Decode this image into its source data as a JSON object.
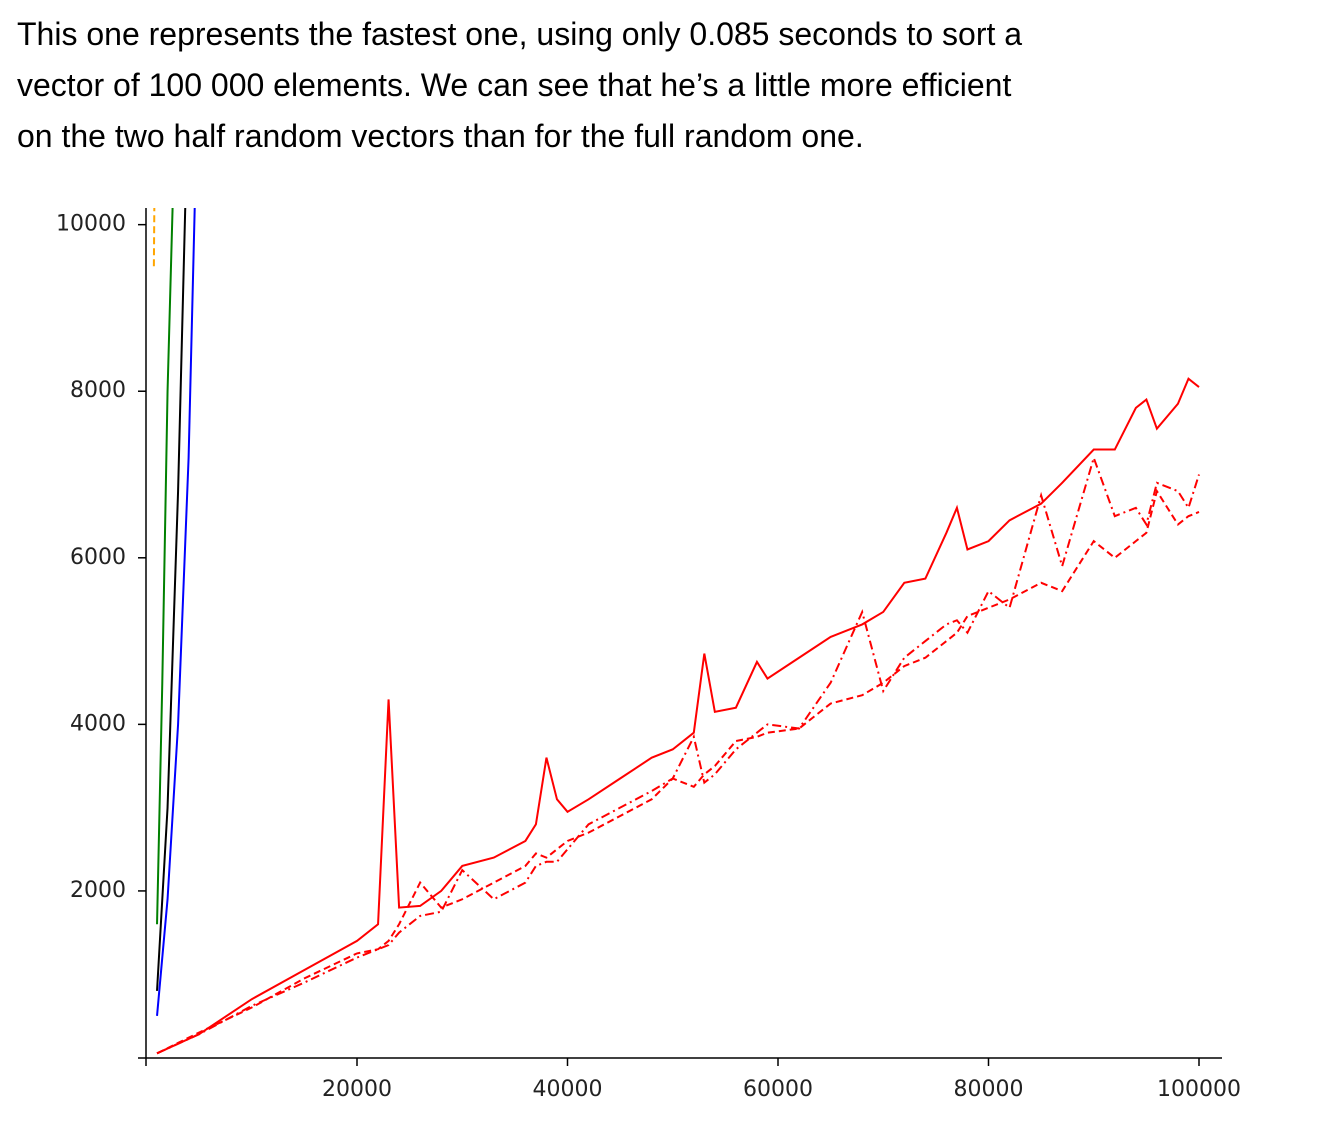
{
  "text": {
    "lines": [
      "This one represents the fastest one, using only 0.085 seconds to sort a",
      "vector of 100 000 elements. We can see that he’s a little more efficient",
      "on the two half random vectors than for the full random one."
    ]
  },
  "chart_data": {
    "type": "line",
    "x": [
      1000,
      5000,
      10000,
      15000,
      20000,
      22000,
      23000,
      24000,
      26000,
      28000,
      30000,
      33000,
      36000,
      37000,
      38000,
      39000,
      40000,
      42000,
      45000,
      48000,
      50000,
      52000,
      53000,
      54000,
      56000,
      58000,
      59000,
      62000,
      65000,
      68000,
      70000,
      72000,
      74000,
      76000,
      77000,
      78000,
      80000,
      82000,
      85000,
      87000,
      90000,
      92000,
      94000,
      95000,
      96000,
      98000,
      99000,
      100000
    ],
    "series": [
      {
        "color": "#ff0000",
        "dash": "solid",
        "values": [
          50,
          280,
          700,
          1050,
          1400,
          1600,
          4300,
          1800,
          1820,
          2000,
          2300,
          2400,
          2600,
          2800,
          3600,
          3100,
          2950,
          3100,
          3350,
          3600,
          3700,
          3900,
          4850,
          4150,
          4200,
          4750,
          4550,
          4800,
          5050,
          5200,
          5350,
          5700,
          5750,
          6300,
          6600,
          6100,
          6200,
          6450,
          6650,
          6900,
          7300,
          7300,
          7800,
          7900,
          7550,
          7850,
          8150,
          8050
        ]
      },
      {
        "color": "#ff0000",
        "dash": "dashed",
        "values": [
          50,
          300,
          600,
          950,
          1250,
          1300,
          1400,
          1600,
          2100,
          1800,
          1900,
          2100,
          2300,
          2450,
          2400,
          2500,
          2600,
          2700,
          2900,
          3100,
          3350,
          3250,
          3400,
          3500,
          3800,
          3850,
          3900,
          3950,
          4250,
          4350,
          4500,
          4700,
          4800,
          5000,
          5100,
          5300,
          5400,
          5500,
          5700,
          5600,
          6200,
          6000,
          6200,
          6300,
          6800,
          6400,
          6500,
          6550
        ]
      },
      {
        "color": "#ff0000",
        "dash": "dashdot",
        "values": [
          50,
          280,
          620,
          900,
          1200,
          1300,
          1350,
          1500,
          1700,
          1750,
          2250,
          1900,
          2100,
          2300,
          2350,
          2350,
          2500,
          2800,
          3000,
          3200,
          3350,
          3850,
          3300,
          3400,
          3700,
          3900,
          4000,
          3950,
          4500,
          5350,
          4400,
          4800,
          5000,
          5200,
          5250,
          5100,
          5600,
          5400,
          6750,
          5900,
          7200,
          6500,
          6600,
          6400,
          6900,
          6800,
          6600,
          7000
        ]
      },
      {
        "color": "#0000ff",
        "dash": "solid",
        "x": [
          1000,
          2000,
          3000,
          4000,
          4600
        ],
        "values": [
          500,
          1900,
          4000,
          7200,
          10300
        ]
      },
      {
        "color": "#000000",
        "dash": "solid",
        "x": [
          1000,
          2000,
          3000,
          3700
        ],
        "values": [
          800,
          3000,
          6800,
          10300
        ]
      },
      {
        "color": "#008000",
        "dash": "solid",
        "x": [
          1000,
          1500,
          2000,
          2500
        ],
        "values": [
          1600,
          4500,
          8000,
          10300
        ]
      },
      {
        "color": "#ffa500",
        "dash": "dashed",
        "x": [
          700,
          750
        ],
        "values": [
          9500,
          10300
        ]
      }
    ],
    "xlim": [
      0,
      102000
    ],
    "ylim": [
      0,
      10200
    ],
    "xticks": [
      20000,
      40000,
      60000,
      80000,
      100000
    ],
    "yticks": [
      2000,
      4000,
      6000,
      8000,
      10000
    ]
  }
}
